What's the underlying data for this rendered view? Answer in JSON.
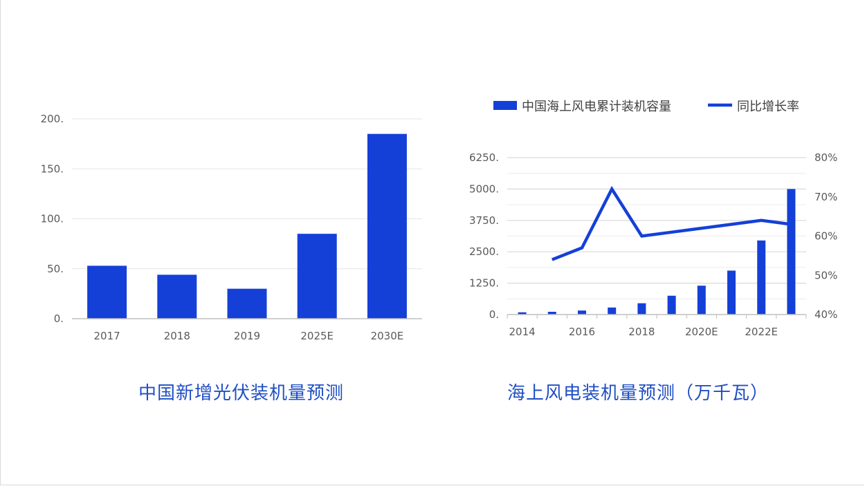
{
  "colors": {
    "bar": "#1440d8",
    "line": "#1440d8",
    "grid": "#d9d9d9",
    "axis": "#bfbfbf",
    "caption": "#1f4fc4"
  },
  "chart_data": [
    {
      "type": "bar",
      "title": "中国新增光伏装机量预测",
      "categories": [
        "2017",
        "2018",
        "2019",
        "2025E",
        "2030E"
      ],
      "values": [
        53,
        44,
        30,
        85,
        185
      ],
      "ylim": [
        0,
        200
      ],
      "yticks": [
        0,
        50,
        100,
        150,
        200
      ],
      "ytick_labels": [
        "0.",
        "50.",
        "100.",
        "150.",
        "200."
      ],
      "grid": true
    },
    {
      "type": "bar+line",
      "title": "海上风电装机量预测（万千瓦）",
      "x": [
        2014,
        2015,
        2016,
        2017,
        2018,
        2019,
        2020,
        2021,
        2022,
        2023
      ],
      "xtick_labels": [
        "2014",
        "2016",
        "2018",
        "2020E",
        "2022E"
      ],
      "xtick_indices": [
        0,
        2,
        4,
        6,
        8
      ],
      "series": [
        {
          "name": "中国海上风电累计装机容量",
          "type": "bar",
          "axis": "left",
          "values": [
            90,
            110,
            160,
            280,
            450,
            750,
            1150,
            1750,
            2950,
            5000
          ]
        },
        {
          "name": "同比增长率",
          "type": "line",
          "axis": "right",
          "unit": "%",
          "values": [
            null,
            54,
            57,
            72,
            60,
            61,
            62,
            63,
            64,
            63
          ]
        }
      ],
      "ylim_left": [
        0,
        6250
      ],
      "yticks_left": [
        0,
        1250,
        2500,
        3750,
        5000,
        6250
      ],
      "ytick_labels_left": [
        "0.",
        "1250.",
        "2500.",
        "3750.",
        "5000.",
        "6250."
      ],
      "ylim_right": [
        40,
        80
      ],
      "yticks_right": [
        40,
        50,
        60,
        70,
        80
      ],
      "ytick_labels_right": [
        "40%",
        "50%",
        "60%",
        "70%",
        "80%"
      ],
      "legend": "top",
      "grid": true
    }
  ]
}
